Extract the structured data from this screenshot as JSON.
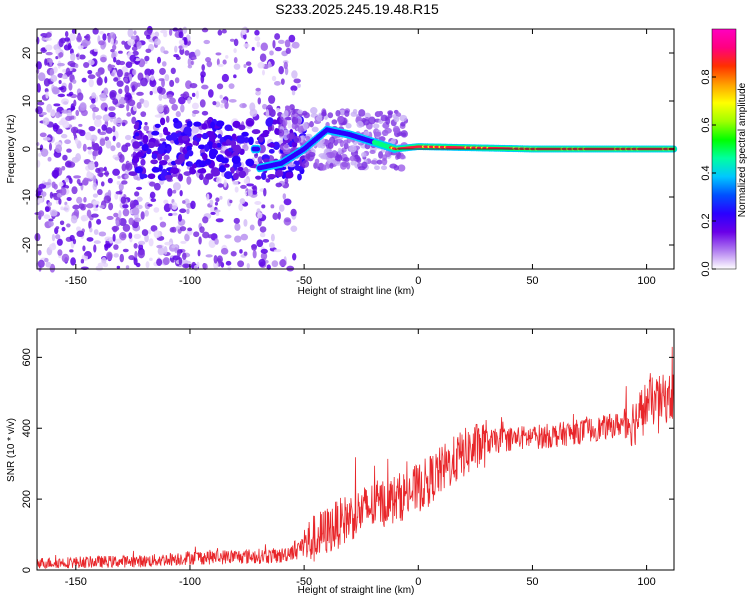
{
  "title": "S233.2025.245.19.48.R15",
  "chart_data": [
    {
      "type": "heatmap",
      "name": "spectrogram",
      "xlabel": "Height of straight line (km)",
      "ylabel": "Frequency (Hz)",
      "xlim": [
        -167,
        112
      ],
      "ylim": [
        -25,
        25
      ],
      "xticks": [
        -150,
        -100,
        -50,
        0,
        50,
        100
      ],
      "xtick_labels": [
        "-150",
        "-100",
        "-50",
        "0",
        "50",
        "100"
      ],
      "yticks": [
        -20,
        -10,
        0,
        10,
        20
      ],
      "ytick_labels": [
        "-20",
        "-10",
        "0",
        "10",
        "20"
      ],
      "colorbar": {
        "label": "Normalized spectral amplitude",
        "ticks": [
          0.0,
          0.2,
          0.4,
          0.6,
          0.8
        ],
        "tick_labels": [
          "0.0",
          "0.2",
          "0.4",
          "0.6",
          "0.8"
        ],
        "colors": [
          "#ffffff",
          "#b07cf0",
          "#6a00e8",
          "#2a00ff",
          "#0050ff",
          "#00c8ff",
          "#00ffa0",
          "#00ff00",
          "#a0ff00",
          "#ffff00",
          "#ffa000",
          "#ff3000",
          "#ff0080",
          "#ff00c0"
        ]
      },
      "ridge": {
        "description_points_x": [
          -70,
          -60,
          -50,
          -40,
          -30,
          -20,
          -10,
          0,
          20,
          50,
          80,
          110
        ],
        "description_points_y": [
          -4,
          -3,
          0,
          4,
          3,
          1.5,
          0,
          0.5,
          0.3,
          0,
          0,
          0
        ]
      }
    },
    {
      "type": "line",
      "name": "snr",
      "xlabel": "Height of straight line (km)",
      "ylabel": "SNR (10 * v/v)",
      "xlim": [
        -167,
        112
      ],
      "ylim": [
        0,
        680
      ],
      "xticks": [
        -150,
        -100,
        -50,
        0,
        50,
        100
      ],
      "xtick_labels": [
        "-150",
        "-100",
        "-50",
        "0",
        "50",
        "100"
      ],
      "yticks": [
        0,
        200,
        400,
        600
      ],
      "ytick_labels": [
        "0",
        "200",
        "400",
        "600"
      ],
      "line_color": "#e8262a",
      "trend_x": [
        -167,
        -120,
        -100,
        -60,
        -50,
        -40,
        -30,
        -20,
        -10,
        0,
        10,
        20,
        30,
        40,
        60,
        80,
        95,
        100,
        112
      ],
      "trend_y": [
        20,
        25,
        35,
        40,
        70,
        110,
        150,
        180,
        200,
        230,
        280,
        330,
        360,
        370,
        380,
        400,
        420,
        470,
        490
      ]
    }
  ]
}
